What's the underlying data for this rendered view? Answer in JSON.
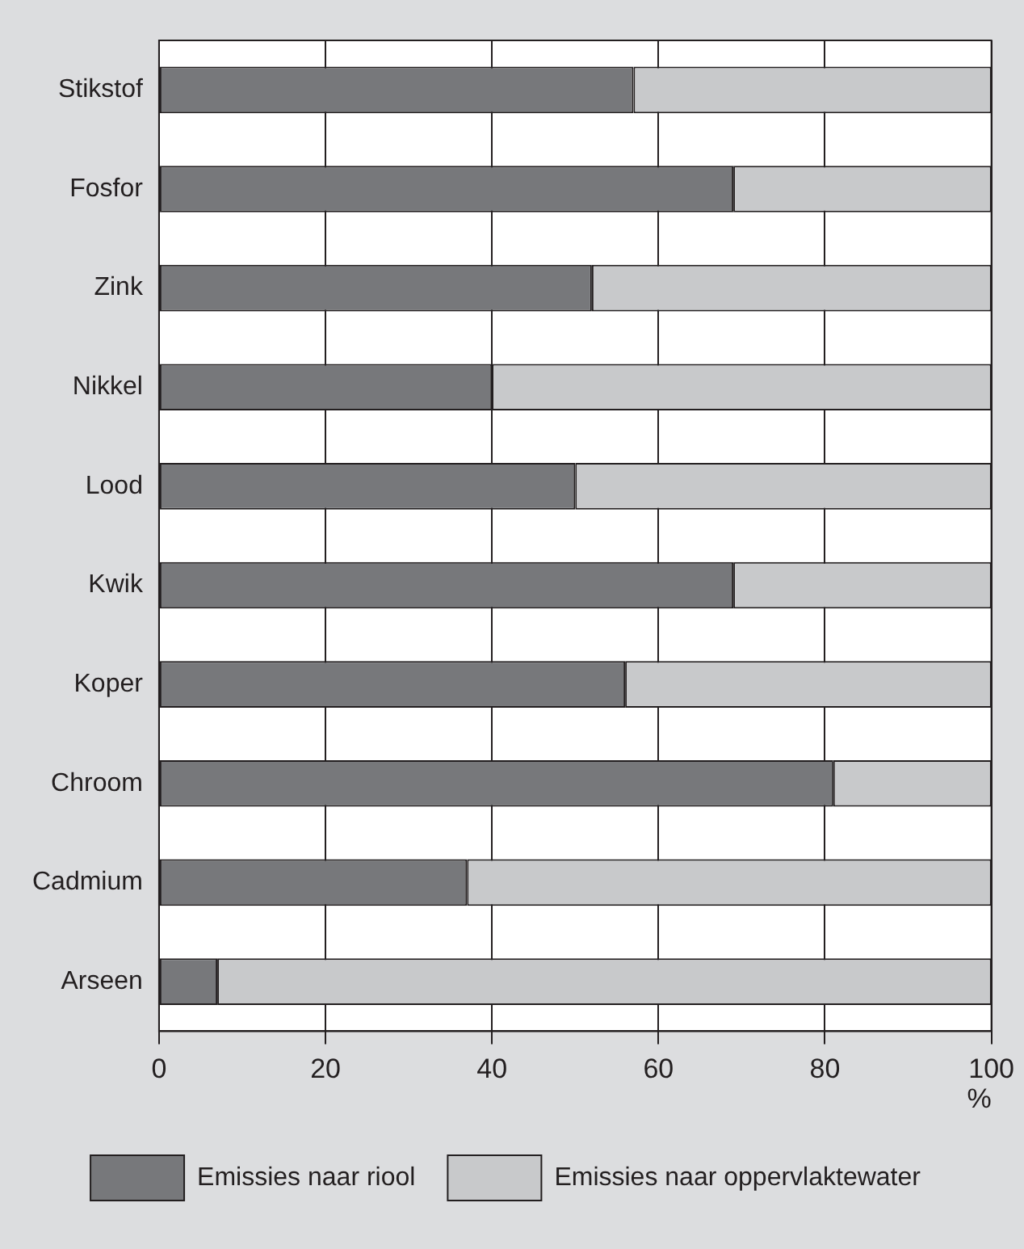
{
  "chart_data": {
    "type": "bar",
    "orientation": "horizontal",
    "stacked": true,
    "categories": [
      "Stikstof",
      "Fosfor",
      "Zink",
      "Nikkel",
      "Lood",
      "Kwik",
      "Koper",
      "Chroom",
      "Cadmium",
      "Arseen"
    ],
    "series": [
      {
        "name": "Emissies naar riool",
        "color": "#77787b",
        "values": [
          57,
          69,
          52,
          40,
          50,
          69,
          56,
          81,
          37,
          7
        ]
      },
      {
        "name": "Emissies naar oppervlaktewater",
        "color": "#c8c9cb",
        "values": [
          43,
          31,
          48,
          60,
          50,
          31,
          44,
          19,
          63,
          93
        ]
      }
    ],
    "xlabel": "%",
    "xlim": [
      0,
      100
    ],
    "xticks": [
      0,
      20,
      40,
      60,
      80,
      100
    ],
    "grid": "x",
    "legend": "bottom"
  }
}
